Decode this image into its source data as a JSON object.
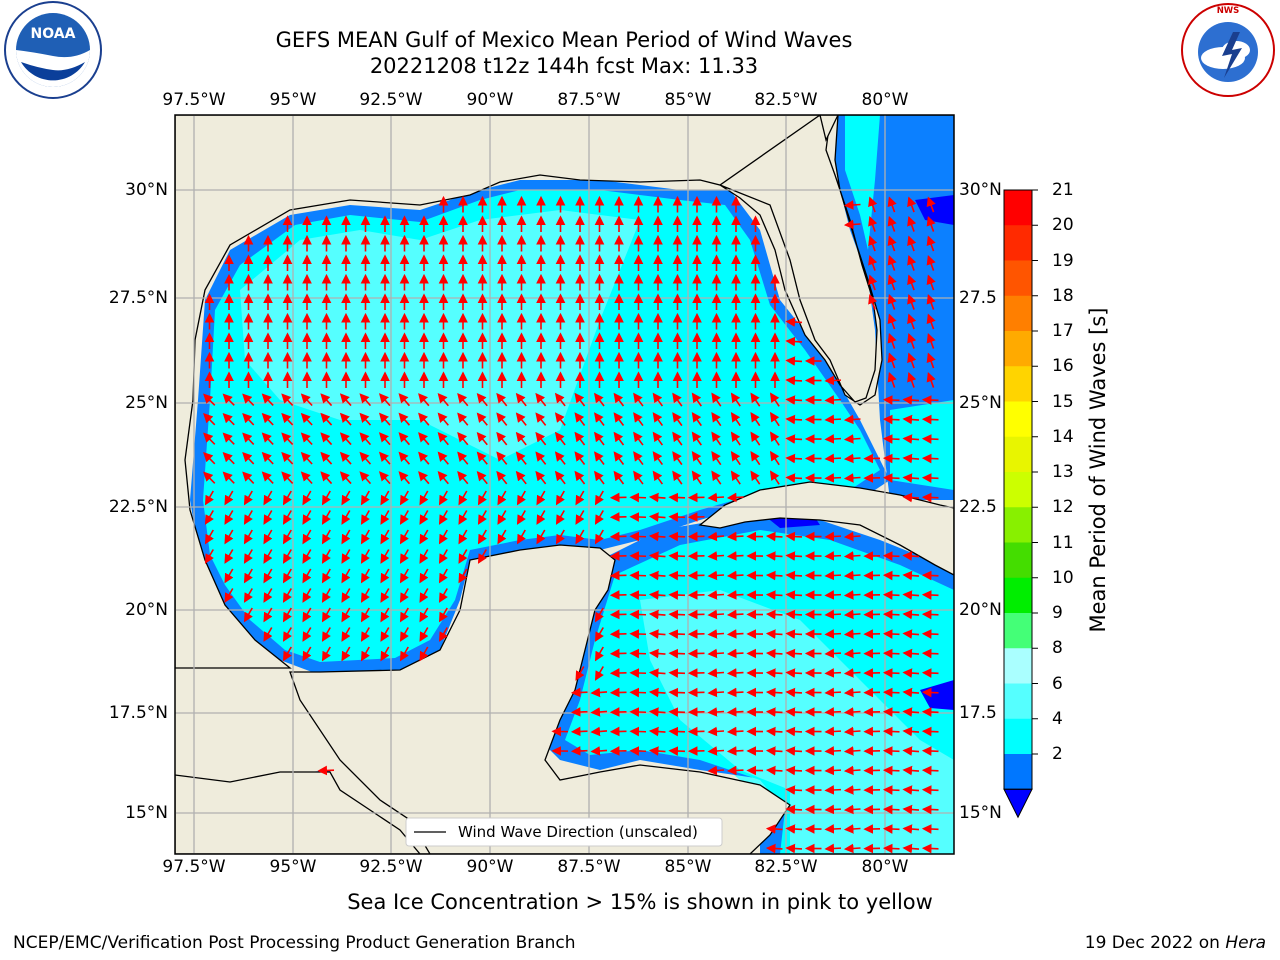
{
  "title": {
    "line1": "GEFS MEAN Gulf of Mexico Mean Period of Wind Waves",
    "line2": "20221208 t12z 144h fcst   Max: 11.33"
  },
  "lon_labels": [
    "97.5°W",
    "95°W",
    "92.5°W",
    "90°W",
    "87.5°W",
    "85°W",
    "82.5°W",
    "80°W"
  ],
  "lat_labels_left": [
    "30°N",
    "27.5°N",
    "25°N",
    "22.5°N",
    "20°N",
    "17.5°N",
    "15°N"
  ],
  "lat_labels_right": [
    "30°N",
    "27.5",
    "25°N",
    "22.5",
    "20°N",
    "17.5",
    "15°N"
  ],
  "map": {
    "lon_range": [
      -98,
      -78.2
    ],
    "lat_range": [
      14,
      31.8
    ],
    "grid": true,
    "legend_label": "Wind Wave Direction (unscaled)",
    "arrow_color": "#ff0000",
    "land_color": "#efecdc",
    "ocean_period_dominant_s": "4-6",
    "max_period_s": 11.33
  },
  "colorbar": {
    "title": "Mean Period of Wind Waves [s]",
    "ticks": [
      "21",
      "20",
      "19",
      "18",
      "17",
      "16",
      "15",
      "14",
      "13",
      "12",
      "11",
      "10",
      "9",
      "8",
      "6",
      "4",
      "2"
    ],
    "colors_top_to_bottom": [
      "#ff0000",
      "#ff2a00",
      "#ff5500",
      "#ff7f00",
      "#ffaa00",
      "#ffd400",
      "#ffff00",
      "#e8f500",
      "#ccff00",
      "#88f000",
      "#44dd00",
      "#00ee00",
      "#44ff77",
      "#aaffff",
      "#55ffff",
      "#00ffff",
      "#0077ff"
    ],
    "extend_color": "#0000ff"
  },
  "caption": "Sea Ice Concentration > 15% is shown in pink to yellow",
  "footer": {
    "left": "NCEP/EMC/Verification Post Processing Product Generation Branch",
    "right_date": "19 Dec 2022 on ",
    "right_host": "Hera"
  },
  "logos": {
    "noaa": "NOAA",
    "nws": "NATIONAL WEATHER SERVICE"
  }
}
